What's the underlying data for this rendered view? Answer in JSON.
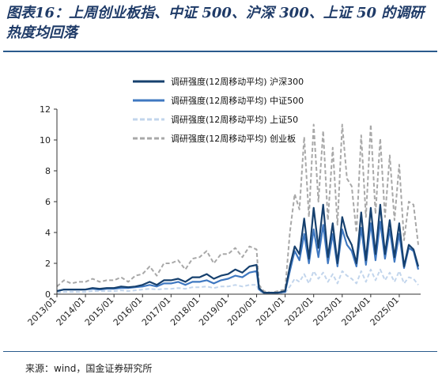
{
  "header": {
    "title": "图表16：上周创业板指、中证 500、沪深 300、上证 50 的调研热度均回落"
  },
  "footer": {
    "source": "来源：wind，国金证券研究所"
  },
  "chart_data": {
    "type": "line",
    "title": "图表16：上周创业板指、中证 500、沪深 300、上证 50 的调研热度均回落",
    "xlabel": "",
    "ylabel": "",
    "ylim": [
      0,
      12
    ],
    "yticks": [
      0,
      2,
      4,
      6,
      8,
      10,
      12
    ],
    "xlim": [
      "2013-01",
      "2025-10"
    ],
    "xticks": [
      "2013/01",
      "2014/01",
      "2015/01",
      "2016/01",
      "2017/01",
      "2018/01",
      "2019/01",
      "2020/01",
      "2021/01",
      "2022/01",
      "2023/01",
      "2024/01",
      "2025/01"
    ],
    "grid": false,
    "legend_position": "top-right",
    "series": [
      {
        "name": "调研强度(12周移动平均) 沪深300",
        "color": "#16406e",
        "style": "solid",
        "x": [
          "2013-01",
          "2013-04",
          "2013-07",
          "2013-10",
          "2014-01",
          "2014-04",
          "2014-07",
          "2014-10",
          "2015-01",
          "2015-04",
          "2015-07",
          "2015-10",
          "2016-01",
          "2016-04",
          "2016-07",
          "2016-10",
          "2017-01",
          "2017-04",
          "2017-07",
          "2017-10",
          "2018-01",
          "2018-04",
          "2018-07",
          "2018-10",
          "2019-01",
          "2019-04",
          "2019-07",
          "2019-10",
          "2020-01",
          "2020-02",
          "2020-04",
          "2020-07",
          "2020-10",
          "2021-01",
          "2021-03",
          "2021-05",
          "2021-07",
          "2021-09",
          "2021-11",
          "2022-01",
          "2022-03",
          "2022-05",
          "2022-07",
          "2022-09",
          "2022-11",
          "2023-01",
          "2023-03",
          "2023-05",
          "2023-07",
          "2023-09",
          "2023-11",
          "2024-01",
          "2024-03",
          "2024-05",
          "2024-07",
          "2024-09",
          "2024-11",
          "2025-01",
          "2025-03",
          "2025-05",
          "2025-07",
          "2025-09"
        ],
        "values": [
          0.2,
          0.3,
          0.3,
          0.3,
          0.3,
          0.4,
          0.35,
          0.4,
          0.4,
          0.5,
          0.45,
          0.5,
          0.6,
          0.8,
          0.6,
          0.9,
          0.9,
          1.0,
          0.8,
          1.1,
          1.1,
          1.3,
          1.0,
          1.2,
          1.3,
          1.6,
          1.4,
          1.8,
          1.9,
          0.4,
          0.1,
          0.1,
          0.1,
          0.2,
          1.8,
          3.1,
          2.6,
          4.9,
          2.3,
          5.6,
          3.0,
          5.8,
          2.4,
          4.6,
          2.0,
          5.0,
          3.8,
          3.2,
          2.0,
          5.3,
          2.2,
          5.6,
          2.6,
          5.8,
          2.6,
          4.8,
          2.4,
          4.6,
          1.8,
          3.2,
          2.9,
          1.8
        ]
      },
      {
        "name": "调研强度(12周移动平均) 中证500",
        "color": "#3f78c1",
        "style": "solid",
        "x": [
          "2013-01",
          "2013-04",
          "2013-07",
          "2013-10",
          "2014-01",
          "2014-04",
          "2014-07",
          "2014-10",
          "2015-01",
          "2015-04",
          "2015-07",
          "2015-10",
          "2016-01",
          "2016-04",
          "2016-07",
          "2016-10",
          "2017-01",
          "2017-04",
          "2017-07",
          "2017-10",
          "2018-01",
          "2018-04",
          "2018-07",
          "2018-10",
          "2019-01",
          "2019-04",
          "2019-07",
          "2019-10",
          "2020-01",
          "2020-02",
          "2020-04",
          "2020-07",
          "2020-10",
          "2021-01",
          "2021-03",
          "2021-05",
          "2021-07",
          "2021-09",
          "2021-11",
          "2022-01",
          "2022-03",
          "2022-05",
          "2022-07",
          "2022-09",
          "2022-11",
          "2023-01",
          "2023-03",
          "2023-05",
          "2023-07",
          "2023-09",
          "2023-11",
          "2024-01",
          "2024-03",
          "2024-05",
          "2024-07",
          "2024-09",
          "2024-11",
          "2025-01",
          "2025-03",
          "2025-05",
          "2025-07",
          "2025-09"
        ],
        "values": [
          0.2,
          0.3,
          0.3,
          0.3,
          0.3,
          0.35,
          0.3,
          0.35,
          0.35,
          0.4,
          0.4,
          0.45,
          0.5,
          0.6,
          0.5,
          0.7,
          0.7,
          0.8,
          0.6,
          0.8,
          0.8,
          0.9,
          0.7,
          0.9,
          1.0,
          1.2,
          1.1,
          1.4,
          1.5,
          0.3,
          0.1,
          0.1,
          0.1,
          0.15,
          1.5,
          2.8,
          2.2,
          3.9,
          2.0,
          4.2,
          2.4,
          4.5,
          2.0,
          3.9,
          1.8,
          4.2,
          3.2,
          2.8,
          1.8,
          4.3,
          1.9,
          4.6,
          2.2,
          4.7,
          2.3,
          4.2,
          2.1,
          3.9,
          1.7,
          3.0,
          2.8,
          1.6
        ]
      },
      {
        "name": "调研强度(12周移动平均) 上证50",
        "color": "#c2d5ec",
        "style": "dashed",
        "x": [
          "2013-01",
          "2013-04",
          "2013-07",
          "2013-10",
          "2014-01",
          "2014-04",
          "2014-07",
          "2014-10",
          "2015-01",
          "2015-04",
          "2015-07",
          "2015-10",
          "2016-01",
          "2016-04",
          "2016-07",
          "2016-10",
          "2017-01",
          "2017-04",
          "2017-07",
          "2017-10",
          "2018-01",
          "2018-04",
          "2018-07",
          "2018-10",
          "2019-01",
          "2019-04",
          "2019-07",
          "2019-10",
          "2020-01",
          "2020-02",
          "2020-04",
          "2020-07",
          "2020-10",
          "2021-01",
          "2021-03",
          "2021-05",
          "2021-07",
          "2021-09",
          "2021-11",
          "2022-01",
          "2022-03",
          "2022-05",
          "2022-07",
          "2022-09",
          "2022-11",
          "2023-01",
          "2023-03",
          "2023-05",
          "2023-07",
          "2023-09",
          "2023-11",
          "2024-01",
          "2024-03",
          "2024-05",
          "2024-07",
          "2024-09",
          "2024-11",
          "2025-01",
          "2025-03",
          "2025-05",
          "2025-07",
          "2025-09"
        ],
        "values": [
          0.1,
          0.15,
          0.15,
          0.15,
          0.15,
          0.2,
          0.2,
          0.2,
          0.2,
          0.25,
          0.2,
          0.25,
          0.3,
          0.35,
          0.3,
          0.35,
          0.35,
          0.4,
          0.35,
          0.45,
          0.45,
          0.5,
          0.4,
          0.5,
          0.5,
          0.6,
          0.5,
          0.6,
          0.6,
          0.2,
          0.05,
          0.05,
          0.05,
          0.1,
          0.5,
          1.0,
          0.8,
          1.3,
          0.7,
          1.5,
          1.0,
          1.4,
          0.8,
          1.3,
          0.7,
          1.5,
          1.2,
          1.0,
          0.7,
          1.5,
          0.8,
          1.6,
          0.9,
          1.6,
          0.9,
          1.4,
          0.8,
          1.5,
          0.7,
          1.1,
          1.0,
          0.6
        ]
      },
      {
        "name": "调研强度(12周移动平均) 创业板",
        "color": "#a8a8a8",
        "style": "dashed",
        "x": [
          "2013-01",
          "2013-04",
          "2013-07",
          "2013-10",
          "2014-01",
          "2014-04",
          "2014-07",
          "2014-10",
          "2015-01",
          "2015-04",
          "2015-07",
          "2015-10",
          "2016-01",
          "2016-04",
          "2016-07",
          "2016-10",
          "2017-01",
          "2017-04",
          "2017-07",
          "2017-10",
          "2018-01",
          "2018-04",
          "2018-07",
          "2018-10",
          "2019-01",
          "2019-04",
          "2019-07",
          "2019-10",
          "2020-01",
          "2020-02",
          "2020-04",
          "2020-07",
          "2020-10",
          "2021-01",
          "2021-03",
          "2021-05",
          "2021-07",
          "2021-09",
          "2021-11",
          "2022-01",
          "2022-03",
          "2022-05",
          "2022-07",
          "2022-09",
          "2022-11",
          "2023-01",
          "2023-03",
          "2023-05",
          "2023-07",
          "2023-09",
          "2023-11",
          "2024-01",
          "2024-03",
          "2024-05",
          "2024-07",
          "2024-09",
          "2024-11",
          "2025-01",
          "2025-03",
          "2025-05",
          "2025-07",
          "2025-09"
        ],
        "values": [
          0.5,
          0.9,
          0.7,
          0.8,
          0.8,
          1.0,
          0.8,
          0.9,
          0.9,
          1.1,
          0.8,
          1.2,
          1.3,
          1.8,
          1.2,
          2.0,
          2.0,
          2.2,
          1.6,
          2.3,
          2.4,
          2.8,
          2.0,
          2.6,
          2.6,
          3.0,
          2.4,
          3.1,
          2.9,
          0.6,
          0.2,
          0.1,
          0.2,
          0.3,
          4.0,
          6.5,
          5.5,
          10.2,
          5.0,
          11.0,
          6.0,
          10.6,
          4.8,
          9.5,
          4.5,
          11.0,
          7.5,
          7.0,
          4.0,
          10.3,
          5.0,
          11.0,
          5.2,
          10.1,
          5.0,
          9.0,
          4.8,
          8.4,
          3.5,
          6.0,
          5.8,
          3.2
        ]
      }
    ]
  }
}
